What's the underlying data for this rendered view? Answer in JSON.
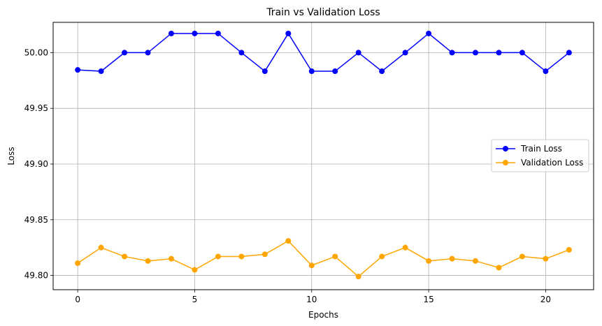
{
  "chart_data": {
    "type": "line",
    "title": "Train vs Validation Loss",
    "xlabel": "Epochs",
    "ylabel": "Loss",
    "xlim": [
      -1.05,
      22.05
    ],
    "ylim": [
      49.7872,
      50.0272
    ],
    "xticks": [
      0,
      5,
      10,
      15,
      20
    ],
    "yticks": [
      49.8,
      49.85,
      49.9,
      49.95,
      50.0
    ],
    "xtick_labels": [
      "0",
      "5",
      "10",
      "15",
      "20"
    ],
    "ytick_labels": [
      "49.80",
      "49.85",
      "49.90",
      "49.95",
      "50.00"
    ],
    "grid": true,
    "legend_position": "center-right",
    "x": [
      0,
      1,
      2,
      3,
      4,
      5,
      6,
      7,
      8,
      9,
      10,
      11,
      12,
      13,
      14,
      15,
      16,
      17,
      18,
      19,
      20,
      21
    ],
    "series": [
      {
        "name": "Train Loss",
        "color": "#0000ff",
        "values": [
          49.9845,
          49.9833,
          50.0,
          50.0,
          50.0172,
          50.0172,
          50.0172,
          50.0,
          49.9833,
          50.0172,
          49.9833,
          49.9833,
          50.0,
          49.9833,
          50.0,
          50.0172,
          50.0,
          50.0,
          50.0,
          50.0,
          49.9833,
          50.0
        ]
      },
      {
        "name": "Validation Loss",
        "color": "#ffa500",
        "values": [
          49.811,
          49.825,
          49.817,
          49.813,
          49.815,
          49.805,
          49.817,
          49.817,
          49.819,
          49.831,
          49.809,
          49.817,
          49.799,
          49.817,
          49.825,
          49.813,
          49.815,
          49.813,
          49.807,
          49.817,
          49.815,
          49.823
        ]
      }
    ]
  }
}
